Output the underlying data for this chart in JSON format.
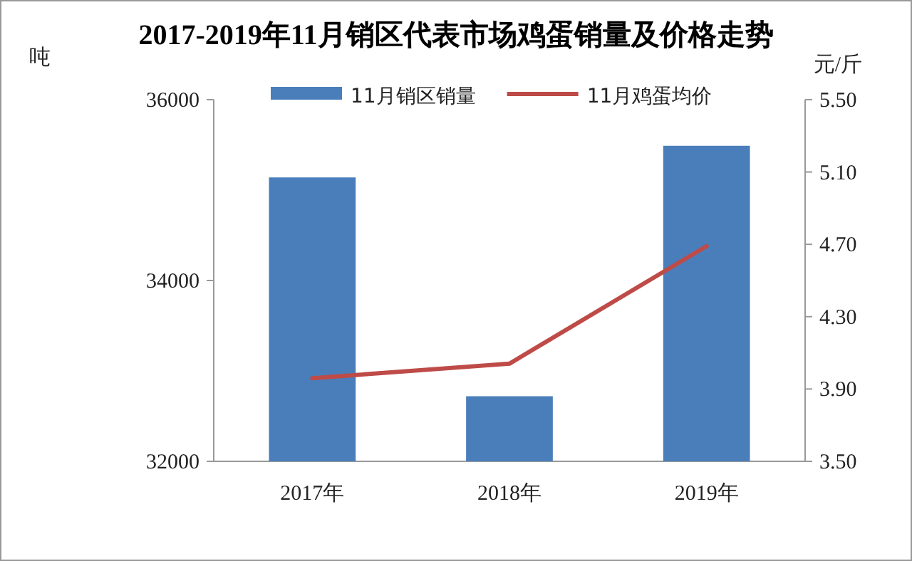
{
  "chart_data": {
    "type": "bar",
    "title": "2017-2019年11月销区代表市场鸡蛋销量及价格走势",
    "ylabel": "吨",
    "y2label": "元/斤",
    "categories": [
      "2017年",
      "2018年",
      "2019年"
    ],
    "series": [
      {
        "name": "11月销区销量",
        "color": "#4a7ebb",
        "values": [
          35140,
          32720,
          35490
        ]
      },
      {
        "name": "11月鸡蛋均价",
        "type": "line",
        "axis": "y2",
        "color": "#be4b48",
        "values": [
          3.96,
          4.04,
          4.69
        ]
      }
    ],
    "ylim": [
      32000,
      36000
    ],
    "yticks": [
      32000,
      34000,
      36000
    ],
    "y2lim": [
      3.5,
      5.5
    ],
    "y2ticks": [
      {
        "value": 3.5,
        "label": "3.50"
      },
      {
        "value": 3.9,
        "label": "3.90"
      },
      {
        "value": 4.3,
        "label": "4.30"
      },
      {
        "value": 4.7,
        "label": "4.70"
      },
      {
        "value": 5.1,
        "label": "5.10"
      },
      {
        "value": 5.5,
        "label": "5.50"
      }
    ],
    "legend": "top"
  }
}
